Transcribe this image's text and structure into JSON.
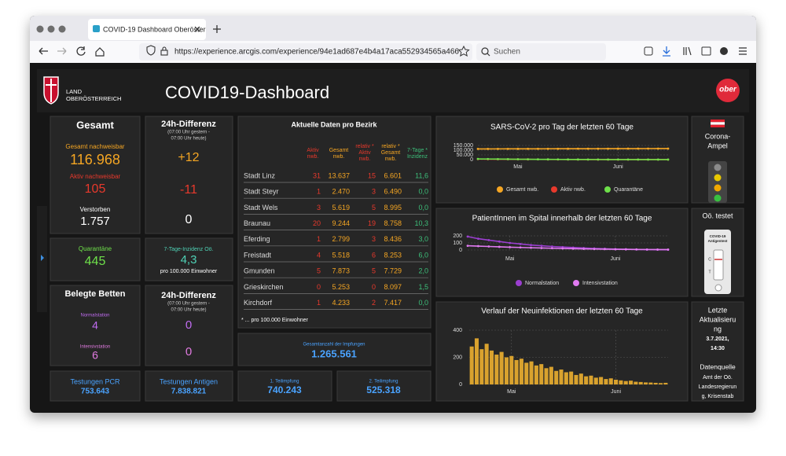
{
  "browser": {
    "tab_title": "COVID-19 Dashboard Oberöster",
    "url": "https://experience.arcgis.com/experience/94e1ad687e4b4a17aca552934565a466",
    "search": "Suchen"
  },
  "header": {
    "logo_lines": [
      "LAND",
      "OBERÖSTERREICH"
    ],
    "title": "COVID19-Dashboard",
    "brand": "ober"
  },
  "gesamt": {
    "title": "Gesamt",
    "total_label": "Gesamt nachweisbar",
    "total": "116.968",
    "active_label": "Aktiv nachweisbar",
    "active": "105",
    "deaths_label": "Verstorben",
    "deaths": "1.757"
  },
  "diff": {
    "title": "24h-Differenz",
    "note": [
      "(07:00 Uhr gestern -",
      "07:00 Uhr heute)"
    ],
    "total": "+12",
    "active": "-11",
    "deaths": "0"
  },
  "quarantine": {
    "label": "Quarantäne",
    "value": "445"
  },
  "incidence": {
    "label": "7-Tage-Inzidenz Oö.",
    "value": "4,3",
    "unit": "pro 100.000 Einwohner"
  },
  "beds": {
    "title": "Belegte Betten",
    "normal_label": "Normalstation",
    "normal": "4",
    "icu_label": "Intensivstation",
    "icu": "6"
  },
  "beds_diff": {
    "title": "24h-Differenz",
    "note": [
      "(07:00 Uhr gestern -",
      "07:00 Uhr heute)"
    ],
    "normal": "0",
    "icu": "0"
  },
  "tests": [
    {
      "label": "Testungen PCR",
      "value": "753.643"
    },
    {
      "label": "Testungen Antigen",
      "value": "7.838.821"
    }
  ],
  "table": {
    "title": "Aktuelle Daten pro Bezirk",
    "headers": [
      [
        "Aktiv",
        "nwb."
      ],
      [
        "Gesamt",
        "nwb."
      ],
      [
        "relativ *",
        "Aktiv",
        "nwb."
      ],
      [
        "relativ *",
        "Gesamt",
        "nwb."
      ],
      [
        "7-Tage *",
        "Inzidenz"
      ]
    ],
    "rows": [
      [
        "Stadt Linz",
        "31",
        "13.637",
        "15",
        "6.601",
        "11,6"
      ],
      [
        "Stadt Steyr",
        "1",
        "2.470",
        "3",
        "6.490",
        "0,0"
      ],
      [
        "Stadt Wels",
        "3",
        "5.619",
        "5",
        "8.995",
        "0,0"
      ],
      [
        "Braunau",
        "20",
        "9.244",
        "19",
        "8.758",
        "10,3"
      ],
      [
        "Eferding",
        "1",
        "2.799",
        "3",
        "8.436",
        "3,0"
      ],
      [
        "Freistadt",
        "4",
        "5.518",
        "6",
        "8.253",
        "6,0"
      ],
      [
        "Gmunden",
        "5",
        "7.873",
        "5",
        "7.729",
        "2,0"
      ],
      [
        "Grieskirchen",
        "0",
        "5.253",
        "0",
        "8.097",
        "1,5"
      ],
      [
        "Kirchdorf",
        "1",
        "4.233",
        "2",
        "7.417",
        "0,0"
      ]
    ],
    "footnote": "* ... pro 100.000 Einwohner"
  },
  "vaccination": {
    "total_label": "Gesamtanzahl der Impfungen",
    "total": "1.265.561",
    "doses": [
      {
        "label": "1. Teilimpfung",
        "value": "740.243"
      },
      {
        "label": "2. Teilimpfung",
        "value": "525.318"
      }
    ]
  },
  "ampel": {
    "label": [
      "Corona-",
      "Ampel"
    ]
  },
  "testet": {
    "title": "Oö. testet",
    "device": [
      "COVID-19",
      "Antigentest"
    ],
    "marks": [
      "C",
      "T"
    ]
  },
  "update": {
    "label": [
      "Letzte",
      "Aktualisieru",
      "ng"
    ],
    "date": "3.7.2021,",
    "time": "14:30",
    "source_label": "Datenquelle",
    "source": [
      "Amt der Oö.",
      "Landesregierun",
      "g, Krisenstab"
    ]
  },
  "chart_data": [
    {
      "type": "line",
      "title": "SARS-CoV-2 pro Tag der letzten 60 Tage",
      "categories": [
        null,
        null,
        null,
        null,
        "Mai",
        null,
        null,
        null,
        null,
        null,
        null,
        null,
        null,
        null,
        "Juni",
        null,
        null,
        null,
        null,
        null
      ],
      "ylim": [
        0,
        150000
      ],
      "yticks": [
        0,
        {
          "value": 50000,
          "label": "50.000"
        },
        {
          "value": 100000,
          "label": "100.000"
        },
        {
          "value": 150000,
          "label": "150.000"
        }
      ],
      "grid": true,
      "series": [
        {
          "name": "Gesamt nwb.",
          "color": "#f5a623",
          "values": [
            113200,
            113400,
            113600,
            113800,
            114000,
            114200,
            114400,
            114600,
            114800,
            115000,
            115200,
            115400,
            115600,
            115800,
            116000,
            116200,
            116400,
            116600,
            116800,
            116968
          ]
        },
        {
          "name": "Aktiv nwb.",
          "color": "#e8392c",
          "values": [
            5200,
            4600,
            4000,
            3400,
            2900,
            2400,
            2000,
            1600,
            1300,
            1000,
            800,
            600,
            450,
            350,
            250,
            200,
            160,
            130,
            110,
            105
          ]
        },
        {
          "name": "Quarantäne",
          "color": "#6ee04a",
          "values": [
            7000,
            6200,
            5400,
            4700,
            4000,
            3400,
            2900,
            2400,
            2000,
            1700,
            1400,
            1200,
            1000,
            850,
            700,
            600,
            530,
            480,
            450,
            445
          ]
        }
      ]
    },
    {
      "type": "line",
      "title": "PatientInnen im Spital innerhalb der letzten 60 Tage",
      "categories": [
        null,
        null,
        null,
        null,
        "Mai",
        null,
        null,
        null,
        null,
        null,
        null,
        null,
        null,
        null,
        "Juni",
        null,
        null,
        null,
        null,
        null
      ],
      "ylim": [
        0,
        200
      ],
      "yticks": [
        0,
        100,
        200
      ],
      "grid": true,
      "series": [
        {
          "name": "Normalstation",
          "color": "#9b3fd0",
          "values": [
            190,
            160,
            140,
            120,
            100,
            85,
            70,
            60,
            50,
            42,
            35,
            28,
            22,
            18,
            14,
            11,
            8,
            6,
            5,
            4
          ]
        },
        {
          "name": "Intensivstation",
          "color": "#e07af0",
          "values": [
            60,
            55,
            50,
            45,
            40,
            36,
            32,
            28,
            25,
            22,
            19,
            16,
            14,
            12,
            10,
            9,
            8,
            7,
            6,
            6
          ]
        }
      ]
    },
    {
      "type": "bar",
      "title": "Verlauf der Neuinfektionen der letzten 60 Tage",
      "categories": [
        null,
        null,
        null,
        null,
        null,
        null,
        null,
        null,
        "Mai",
        null,
        null,
        null,
        null,
        null,
        null,
        null,
        null,
        null,
        null,
        null,
        null,
        null,
        null,
        null,
        null,
        null,
        null,
        null,
        null,
        "Juni",
        null,
        null,
        null,
        null,
        null,
        null,
        null,
        null,
        null,
        null
      ],
      "ylim": [
        0,
        400
      ],
      "yticks": [
        0,
        200,
        400
      ],
      "grid": true,
      "color": "#d9a22e",
      "values": [
        280,
        340,
        260,
        300,
        250,
        220,
        240,
        200,
        210,
        180,
        190,
        160,
        170,
        140,
        150,
        120,
        130,
        100,
        110,
        90,
        95,
        70,
        80,
        60,
        65,
        50,
        55,
        40,
        45,
        35,
        30,
        25,
        28,
        20,
        18,
        15,
        14,
        12,
        10,
        12
      ]
    }
  ]
}
